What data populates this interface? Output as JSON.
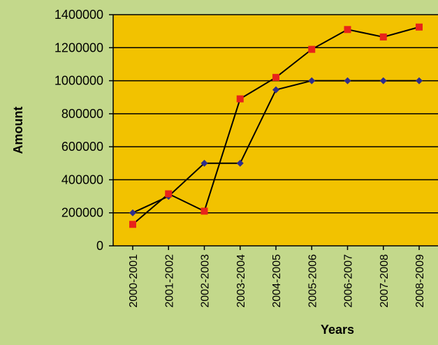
{
  "colors": {
    "page_background": "#c3d88b",
    "plot_background": "#f2c200",
    "gridline": "#000000",
    "series_1_marker": "#2e2e8c",
    "series_2_marker": "#e8231a",
    "line": "#000000"
  },
  "chart_data": {
    "type": "line",
    "title": "",
    "xlabel": "Years",
    "ylabel": "Amount",
    "ylim": [
      0,
      1400000
    ],
    "y_ticks": [
      0,
      200000,
      400000,
      600000,
      800000,
      1000000,
      1200000,
      1400000
    ],
    "y_tick_labels": [
      "0",
      "200000",
      "400000",
      "600000",
      "800000",
      "1000000",
      "1200000",
      "1400000"
    ],
    "grid": "horizontal",
    "legend": "none",
    "categories": [
      "2000-2001",
      "2001-2002",
      "2002-2003",
      "2003-2004",
      "2004-2005",
      "2005-2006",
      "2006-2007",
      "2007-2008",
      "2008-2009"
    ],
    "series": [
      {
        "marker": "diamond",
        "color": "#2e2e8c",
        "values": [
          200000,
          300000,
          500000,
          500000,
          945000,
          1000000,
          1000000,
          1000000,
          1000000
        ]
      },
      {
        "marker": "square",
        "color": "#e8231a",
        "values": [
          130000,
          315000,
          210000,
          890000,
          1020000,
          1190000,
          1310000,
          1265000,
          1325000
        ]
      }
    ]
  }
}
